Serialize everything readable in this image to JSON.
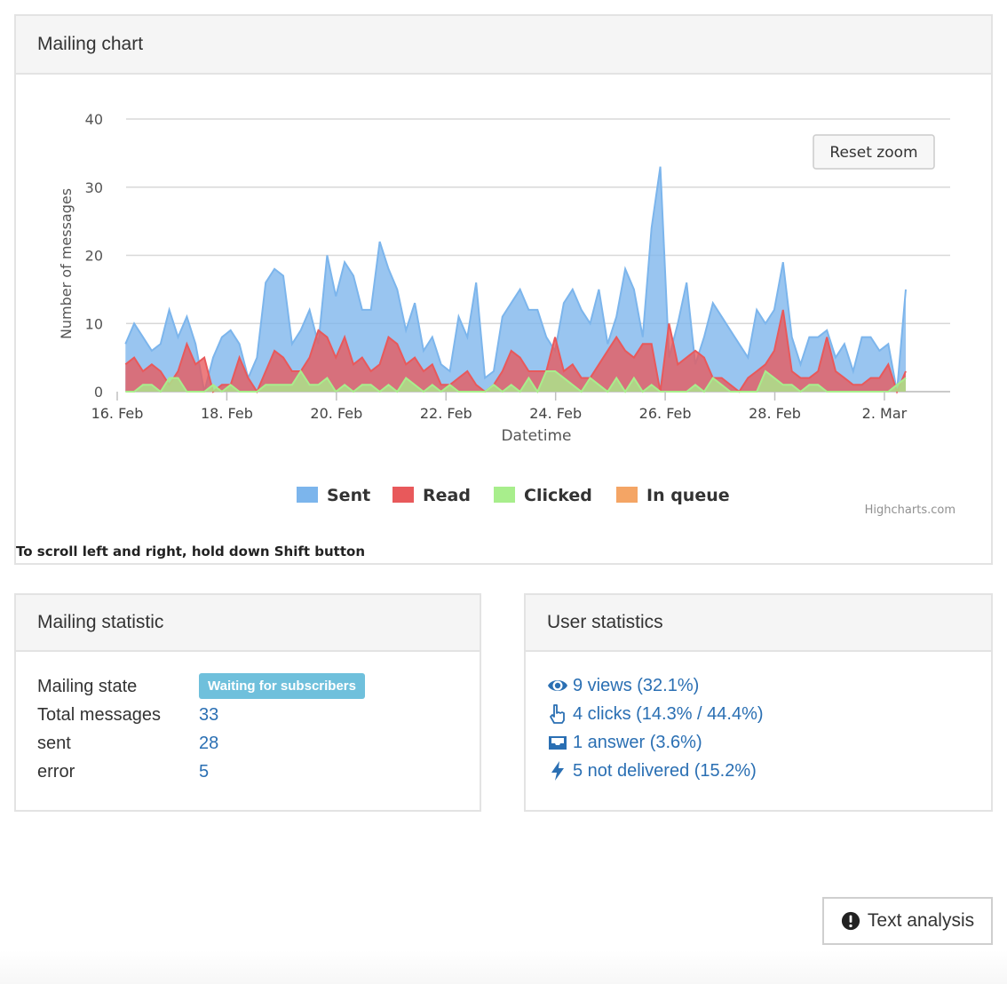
{
  "chart_panel": {
    "title": "Mailing chart",
    "scroll_hint": "To scroll left and right, hold down Shift button"
  },
  "chart_data": {
    "type": "area",
    "title": "",
    "xlabel": "Datetime",
    "ylabel": "Number of messages",
    "ylim": [
      0,
      40
    ],
    "yticks": [
      0,
      10,
      20,
      30,
      40
    ],
    "xlim": [
      0,
      15.2
    ],
    "xticks": [
      {
        "x": 0,
        "label": "16. Feb"
      },
      {
        "x": 2,
        "label": "18. Feb"
      },
      {
        "x": 4,
        "label": "20. Feb"
      },
      {
        "x": 6,
        "label": "22. Feb"
      },
      {
        "x": 8,
        "label": "24. Feb"
      },
      {
        "x": 10,
        "label": "26. Feb"
      },
      {
        "x": 12,
        "label": "28. Feb"
      },
      {
        "x": 14,
        "label": "2. Mar"
      }
    ],
    "x_start": 0.15,
    "x_step": 0.16,
    "series": [
      {
        "name": "Sent",
        "color": "#7cb5ec",
        "values": [
          7,
          10,
          8,
          6,
          7,
          12,
          8,
          11,
          7,
          0,
          5,
          8,
          9,
          7,
          2,
          5,
          16,
          18,
          17,
          7,
          9,
          12,
          7,
          20,
          14,
          19,
          17,
          12,
          12,
          22,
          18,
          15,
          9,
          13,
          6,
          8,
          4,
          3,
          11,
          8,
          16,
          2,
          3,
          11,
          13,
          15,
          12,
          12,
          8,
          6,
          13,
          15,
          12,
          10,
          15,
          7,
          11,
          18,
          15,
          8,
          24,
          33,
          5,
          10,
          16,
          4,
          8,
          13,
          11,
          9,
          7,
          5,
          12,
          10,
          12,
          19,
          8,
          4,
          8,
          8,
          9,
          5,
          7,
          3,
          8,
          8,
          6,
          7,
          0,
          15
        ]
      },
      {
        "name": "Read",
        "color": "#e8595b",
        "values": [
          4,
          5,
          3,
          4,
          3,
          1,
          3,
          7,
          4,
          5,
          0,
          1,
          1,
          5,
          2,
          0,
          3,
          6,
          5,
          3,
          3,
          5,
          9,
          8,
          5,
          8,
          4,
          5,
          3,
          4,
          8,
          7,
          4,
          5,
          3,
          4,
          1,
          1,
          2,
          3,
          1,
          0,
          1,
          3,
          6,
          5,
          3,
          3,
          3,
          8,
          3,
          4,
          2,
          2,
          4,
          6,
          8,
          6,
          5,
          7,
          7,
          0,
          10,
          4,
          5,
          6,
          5,
          2,
          2,
          1,
          0,
          2,
          3,
          4,
          6,
          12,
          3,
          2,
          2,
          3,
          8,
          3,
          2,
          1,
          1,
          2,
          2,
          4,
          0,
          3
        ]
      },
      {
        "name": "Clicked",
        "color": "#a8ee8c",
        "values": [
          0,
          0,
          1,
          1,
          0,
          2,
          2,
          0,
          0,
          0,
          1,
          0,
          1,
          0,
          0,
          0,
          1,
          1,
          1,
          1,
          3,
          1,
          1,
          2,
          0,
          1,
          0,
          1,
          1,
          0,
          1,
          0,
          2,
          1,
          0,
          1,
          0,
          1,
          0,
          0,
          0,
          0,
          1,
          0,
          1,
          0,
          2,
          0,
          3,
          3,
          2,
          1,
          0,
          2,
          1,
          0,
          2,
          0,
          2,
          0,
          1,
          0,
          0,
          0,
          0,
          1,
          0,
          2,
          1,
          0,
          0,
          0,
          0,
          3,
          2,
          1,
          1,
          0,
          1,
          1,
          0,
          0,
          0,
          0,
          0,
          0,
          0,
          0,
          1,
          2
        ]
      },
      {
        "name": "In queue",
        "color": "#f4a565",
        "values": []
      }
    ],
    "legend": [
      {
        "name": "Sent",
        "color": "#7cb5ec"
      },
      {
        "name": "Read",
        "color": "#e8595b"
      },
      {
        "name": "Clicked",
        "color": "#a8ee8c"
      },
      {
        "name": "In queue",
        "color": "#f4a565"
      }
    ],
    "reset_zoom_label": "Reset zoom",
    "credits": "Highcharts.com"
  },
  "mailing_statistic": {
    "title": "Mailing statistic",
    "rows": [
      {
        "label": "Mailing state",
        "value": "Waiting for subscribers"
      },
      {
        "label": "Total messages",
        "value": "33"
      },
      {
        "label": "sent",
        "value": "28"
      },
      {
        "label": "error",
        "value": "5"
      }
    ],
    "badge_color": "#6fc0dc"
  },
  "user_statistics": {
    "title": "User statistics",
    "items": [
      {
        "icon": "eye-icon",
        "text": "9 views (32.1%)"
      },
      {
        "icon": "hand-pointer-icon",
        "text": "4 clicks (14.3% / 44.4%)"
      },
      {
        "icon": "inbox-icon",
        "text": "1 answer (3.6%)"
      },
      {
        "icon": "bolt-icon",
        "text": "5 not delivered (15.2%)"
      }
    ],
    "link_color": "#2a6fb3"
  },
  "text_analysis_button": {
    "label": "Text analysis",
    "icon": "exclamation-circle-icon"
  }
}
